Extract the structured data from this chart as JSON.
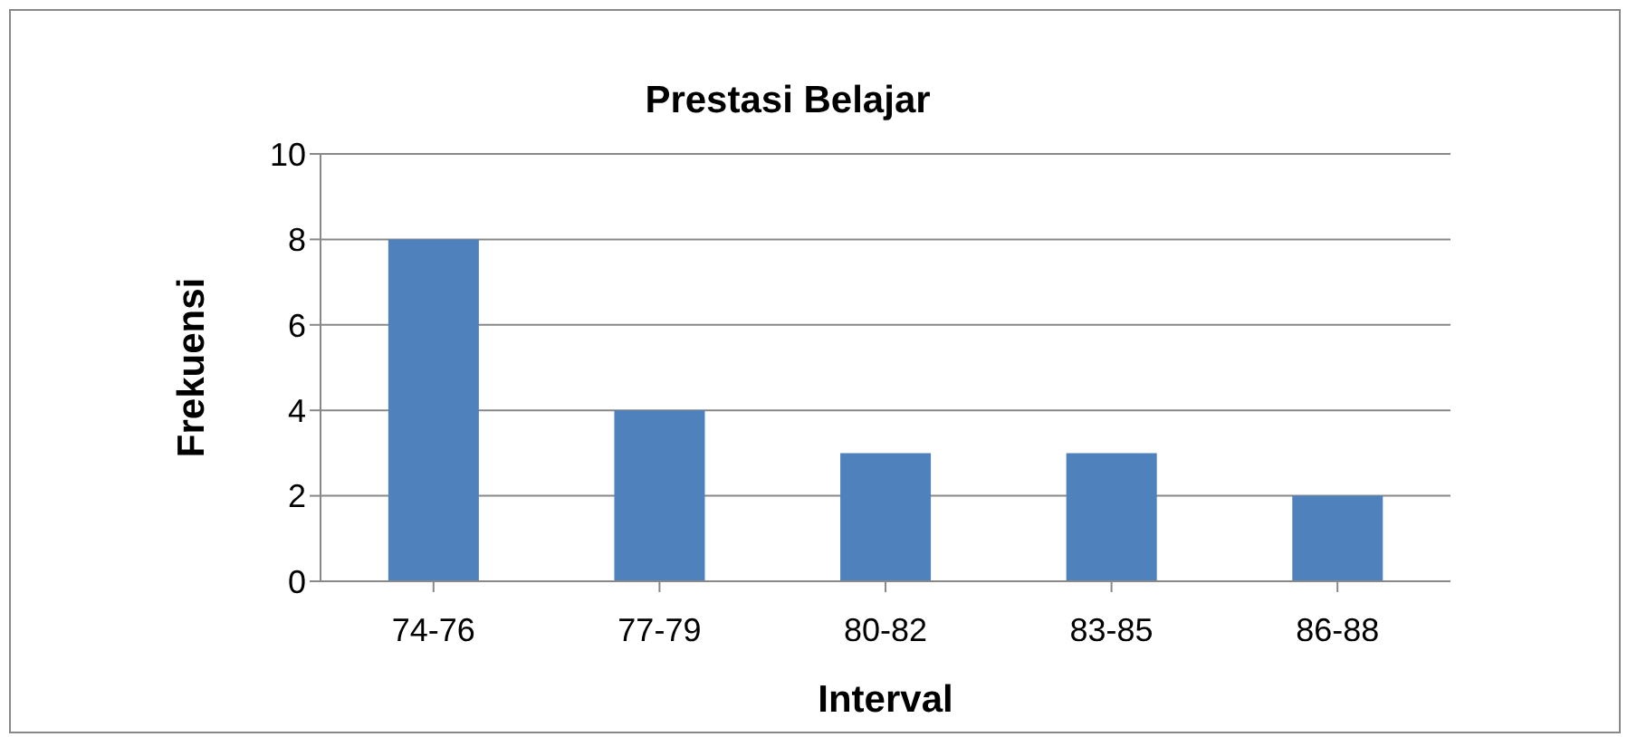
{
  "chart_data": {
    "type": "bar",
    "title": "Prestasi Belajar",
    "xlabel": "Interval",
    "ylabel": "Frekuensi",
    "categories": [
      "74-76",
      "77-79",
      "80-82",
      "83-85",
      "86-88"
    ],
    "series": [
      {
        "color": "#4f81bd",
        "values": [
          8,
          4,
          3,
          3,
          2
        ]
      }
    ],
    "ylim": [
      0,
      10
    ],
    "yticks": [
      0,
      2,
      4,
      6,
      8,
      10
    ],
    "grid": "y"
  }
}
